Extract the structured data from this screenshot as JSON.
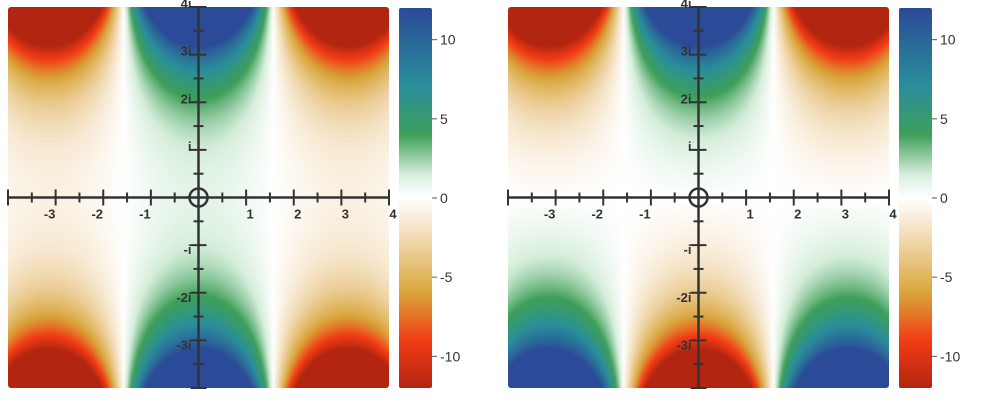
{
  "chart_data": [
    {
      "type": "heatmap",
      "function": "Re(cos z)",
      "x_range": [
        -4,
        4
      ],
      "y_range": [
        -4,
        4
      ],
      "x_ticks": [
        {
          "value": -3,
          "label": "-3"
        },
        {
          "value": -2,
          "label": "-2"
        },
        {
          "value": -1,
          "label": "-1"
        },
        {
          "value": 1,
          "label": "1"
        },
        {
          "value": 2,
          "label": "2"
        },
        {
          "value": 3,
          "label": "3"
        },
        {
          "value": 4,
          "label": "4"
        }
      ],
      "y_ticks": [
        {
          "value": 4,
          "label": "4i"
        },
        {
          "value": 3,
          "label": "3i"
        },
        {
          "value": 2,
          "label": "2i"
        },
        {
          "value": 1,
          "label": "i"
        },
        {
          "value": -1,
          "label": "-i"
        },
        {
          "value": -2,
          "label": "-2i"
        },
        {
          "value": -3,
          "label": "-3i"
        }
      ],
      "colorbar": {
        "range": [
          -12,
          12
        ],
        "ticks": [
          {
            "value": 10,
            "label": "10"
          },
          {
            "value": 5,
            "label": "5"
          },
          {
            "value": 0,
            "label": "0"
          },
          {
            "value": -5,
            "label": "-5"
          },
          {
            "value": -10,
            "label": "-10"
          }
        ]
      }
    },
    {
      "type": "heatmap",
      "function": "Im(sin z)",
      "x_range": [
        -4,
        4
      ],
      "y_range": [
        -4,
        4
      ],
      "x_ticks": [
        {
          "value": -3,
          "label": "-3"
        },
        {
          "value": -2,
          "label": "-2"
        },
        {
          "value": -1,
          "label": "-1"
        },
        {
          "value": 1,
          "label": "1"
        },
        {
          "value": 2,
          "label": "2"
        },
        {
          "value": 3,
          "label": "3"
        },
        {
          "value": 4,
          "label": "4"
        }
      ],
      "y_ticks": [
        {
          "value": 4,
          "label": "4i"
        },
        {
          "value": 3,
          "label": "3i"
        },
        {
          "value": 2,
          "label": "2i"
        },
        {
          "value": 1,
          "label": "i"
        },
        {
          "value": -1,
          "label": "-i"
        },
        {
          "value": -2,
          "label": "-2i"
        },
        {
          "value": -3,
          "label": "-3i"
        }
      ],
      "colorbar": {
        "range": [
          -12,
          12
        ],
        "ticks": [
          {
            "value": 10,
            "label": "10"
          },
          {
            "value": 5,
            "label": "5"
          },
          {
            "value": 0,
            "label": "0"
          },
          {
            "value": -5,
            "label": "-5"
          },
          {
            "value": -10,
            "label": "-10"
          }
        ]
      }
    }
  ],
  "colors": {
    "colormap": [
      "#b22510",
      "#f23c15",
      "#d9a53a",
      "#f5e2c4",
      "#ffffff",
      "#d6eedb",
      "#3e9f5a",
      "#2a8f9a",
      "#2b4a97"
    ],
    "axis": "#333333",
    "text": "#333333"
  }
}
